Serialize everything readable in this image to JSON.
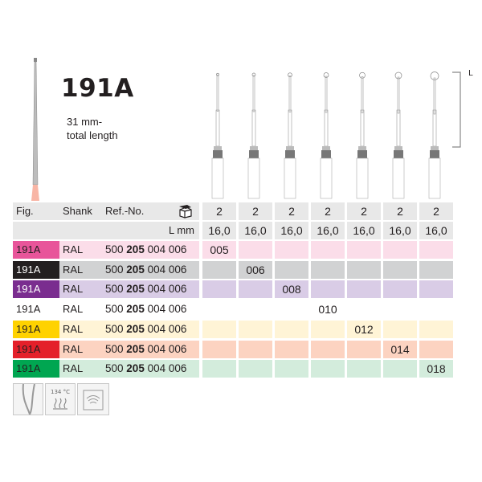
{
  "product": {
    "title": "191A",
    "subtitle_line1": "31 mm-",
    "subtitle_line2": "total length",
    "length_marker": "L"
  },
  "header": {
    "fig": "Fig.",
    "shank": "Shank",
    "ref": "Ref.-No.",
    "pack_icon": "package-box-icon",
    "lmm": "L mm"
  },
  "columns": [
    {
      "pack": "2",
      "length": "16,0"
    },
    {
      "pack": "2",
      "length": "16,0"
    },
    {
      "pack": "2",
      "length": "16,0"
    },
    {
      "pack": "2",
      "length": "16,0"
    },
    {
      "pack": "2",
      "length": "16,0"
    },
    {
      "pack": "2",
      "length": "16,0"
    },
    {
      "pack": "2",
      "length": "16,0"
    }
  ],
  "rows": [
    {
      "fig": "191A",
      "shank": "RAL",
      "ref_a": "500",
      "ref_b": "205",
      "ref_c": "004 006",
      "size": "005",
      "col": 0,
      "color": "#e8559a",
      "bg": "#fbdde9",
      "figtext": "#231f20"
    },
    {
      "fig": "191A",
      "shank": "RAL",
      "ref_a": "500",
      "ref_b": "205",
      "ref_c": "004 006",
      "size": "006",
      "col": 1,
      "color": "#231f20",
      "bg": "#d1d2d3",
      "figtext": "#ffffff"
    },
    {
      "fig": "191A",
      "shank": "RAL",
      "ref_a": "500",
      "ref_b": "205",
      "ref_c": "004 006",
      "size": "008",
      "col": 2,
      "color": "#7a2d8f",
      "bg": "#d9cce6",
      "figtext": "#ffffff"
    },
    {
      "fig": "191A",
      "shank": "RAL",
      "ref_a": "500",
      "ref_b": "205",
      "ref_c": "004 006",
      "size": "010",
      "col": 3,
      "color": "#ffffff",
      "bg": "#ffffff",
      "figtext": "#231f20"
    },
    {
      "fig": "191A",
      "shank": "RAL",
      "ref_a": "500",
      "ref_b": "205",
      "ref_c": "004 006",
      "size": "012",
      "col": 4,
      "color": "#ffd200",
      "bg": "#fff4d6",
      "figtext": "#231f20"
    },
    {
      "fig": "191A",
      "shank": "RAL",
      "ref_a": "500",
      "ref_b": "205",
      "ref_c": "004 006",
      "size": "014",
      "col": 5,
      "color": "#e4202a",
      "bg": "#fcd3c1",
      "figtext": "#231f20"
    },
    {
      "fig": "191A",
      "shank": "RAL",
      "ref_a": "500",
      "ref_b": "205",
      "ref_c": "004 006",
      "size": "018",
      "col": 6,
      "color": "#00a651",
      "bg": "#d3ecdc",
      "figtext": "#231f20"
    }
  ],
  "icons": [
    {
      "name": "root-canal-icon"
    },
    {
      "name": "sterilization-icon",
      "label": "134 °C"
    },
    {
      "name": "thermo-disinfector-icon"
    }
  ]
}
